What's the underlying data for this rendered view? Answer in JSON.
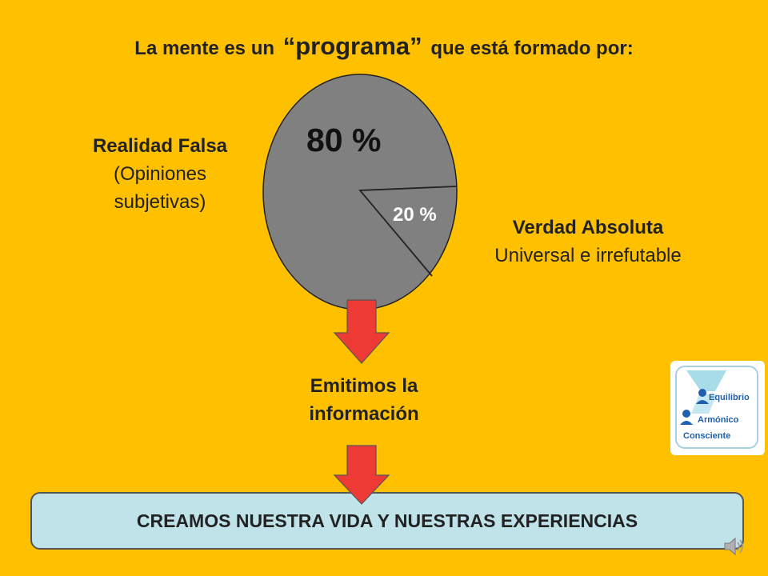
{
  "title": {
    "before": "La mente es un",
    "highlight": "“programa”",
    "after": "que está formado por:"
  },
  "left_label": {
    "heading": "Realidad Falsa",
    "line1": "(Opiniones",
    "line2": "subjetivas)"
  },
  "right_label": {
    "heading": "Verdad Absoluta",
    "line1": "Universal e irrefutable"
  },
  "emit_label": {
    "line1": "Emitimos la",
    "line2": "información"
  },
  "result": "CREAMOS NUESTRA VIDA Y NUESTRAS EXPERIENCIAS",
  "logo": {
    "word1": "Equilibrio",
    "word2": "Armónico",
    "word3": "Consciente"
  },
  "colors": {
    "background": "#FFC000",
    "pie": "#808080",
    "arrow": "#EE3A35",
    "result_box": "#BFE3E8",
    "logo_blue": "#1F5FAF"
  },
  "chart_data": {
    "type": "pie",
    "slices": [
      {
        "label": "80 %",
        "value": 80
      },
      {
        "label": "20 %",
        "value": 20
      }
    ]
  }
}
